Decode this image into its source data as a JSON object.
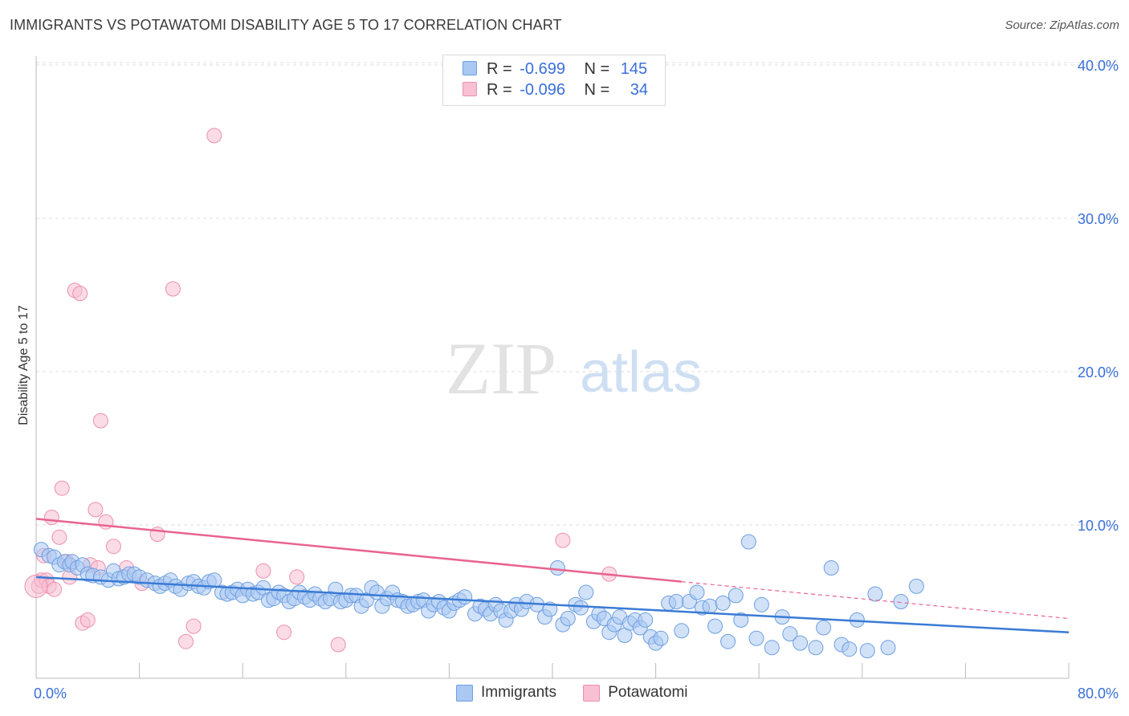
{
  "title": "IMMIGRANTS VS POTAWATOMI DISABILITY AGE 5 TO 17 CORRELATION CHART",
  "source": "Source: ZipAtlas.com",
  "watermark": {
    "zip": "ZIP",
    "atlas": "atlas"
  },
  "legend": {
    "rows": [
      {
        "r_label": "R =",
        "r_value": "-0.699",
        "n_label": "N =",
        "n_value": "145",
        "color": "#a9c8f2",
        "stroke": "#6f9fe0"
      },
      {
        "r_label": "R =",
        "r_value": "-0.096",
        "n_label": "N =",
        "n_value": "34",
        "color": "#f8c0d2",
        "stroke": "#ec8fb0"
      }
    ]
  },
  "bottom_legend": [
    {
      "label": "Immigrants",
      "color": "#a9c8f2",
      "stroke": "#6f9fe0"
    },
    {
      "label": "Potawatomi",
      "color": "#f8c0d2",
      "stroke": "#ec8fb0"
    }
  ],
  "chart_data": {
    "type": "scatter",
    "title": "IMMIGRANTS VS POTAWATOMI DISABILITY AGE 5 TO 17 CORRELATION CHART",
    "xlabel": "",
    "ylabel": "Disability Age 5 to 17",
    "xlim": [
      0,
      80
    ],
    "ylim": [
      0,
      42
    ],
    "x_tick_labels": [
      "0.0%",
      "80.0%"
    ],
    "y_ticks": [
      10,
      20,
      30,
      40
    ],
    "y_tick_labels": [
      "10.0%",
      "20.0%",
      "30.0%",
      "40.0%"
    ],
    "grid": true,
    "legend_position": "top-center",
    "colors": {
      "immigrants": "#3a7bd5",
      "potawatomi": "#e8648f",
      "tick_text": "#3a6fd8"
    },
    "series": [
      {
        "name": "Immigrants",
        "trend": {
          "x": [
            0,
            80
          ],
          "y": [
            6.6,
            3.0
          ],
          "dashed_after": null
        },
        "points": [
          [
            0.4,
            8.4
          ],
          [
            1.0,
            8.0
          ],
          [
            1.4,
            7.9
          ],
          [
            1.8,
            7.4
          ],
          [
            2.2,
            7.6
          ],
          [
            2.6,
            7.4
          ],
          [
            2.8,
            7.6
          ],
          [
            3.2,
            7.2
          ],
          [
            3.6,
            7.4
          ],
          [
            4.0,
            6.8
          ],
          [
            4.4,
            6.7
          ],
          [
            5.0,
            6.6
          ],
          [
            5.6,
            6.4
          ],
          [
            6.0,
            7.0
          ],
          [
            6.4,
            6.5
          ],
          [
            6.8,
            6.6
          ],
          [
            7.2,
            6.8
          ],
          [
            7.6,
            6.8
          ],
          [
            8.0,
            6.6
          ],
          [
            8.6,
            6.4
          ],
          [
            9.2,
            6.2
          ],
          [
            9.6,
            6.0
          ],
          [
            10.0,
            6.2
          ],
          [
            10.4,
            6.4
          ],
          [
            10.8,
            6.0
          ],
          [
            11.2,
            5.8
          ],
          [
            11.8,
            6.2
          ],
          [
            12.2,
            6.3
          ],
          [
            12.6,
            6.0
          ],
          [
            13.0,
            5.9
          ],
          [
            13.4,
            6.3
          ],
          [
            13.8,
            6.4
          ],
          [
            14.4,
            5.6
          ],
          [
            14.8,
            5.5
          ],
          [
            15.2,
            5.6
          ],
          [
            15.6,
            5.8
          ],
          [
            16.0,
            5.4
          ],
          [
            16.4,
            5.8
          ],
          [
            16.8,
            5.5
          ],
          [
            17.2,
            5.6
          ],
          [
            17.6,
            5.9
          ],
          [
            18.0,
            5.1
          ],
          [
            18.4,
            5.2
          ],
          [
            18.8,
            5.6
          ],
          [
            19.2,
            5.4
          ],
          [
            19.6,
            5.0
          ],
          [
            20.0,
            5.2
          ],
          [
            20.4,
            5.6
          ],
          [
            20.8,
            5.3
          ],
          [
            21.2,
            5.1
          ],
          [
            21.6,
            5.5
          ],
          [
            22.0,
            5.2
          ],
          [
            22.4,
            5.0
          ],
          [
            22.8,
            5.2
          ],
          [
            23.2,
            5.8
          ],
          [
            23.6,
            5.0
          ],
          [
            24.0,
            5.1
          ],
          [
            24.4,
            5.4
          ],
          [
            24.8,
            5.4
          ],
          [
            25.2,
            4.7
          ],
          [
            25.6,
            5.1
          ],
          [
            26.0,
            5.9
          ],
          [
            26.4,
            5.6
          ],
          [
            26.8,
            4.7
          ],
          [
            27.2,
            5.2
          ],
          [
            27.6,
            5.6
          ],
          [
            28.0,
            5.1
          ],
          [
            28.4,
            5.0
          ],
          [
            28.8,
            4.7
          ],
          [
            29.2,
            4.8
          ],
          [
            29.6,
            5.0
          ],
          [
            30.0,
            5.1
          ],
          [
            30.4,
            4.4
          ],
          [
            30.8,
            4.8
          ],
          [
            31.2,
            5.0
          ],
          [
            31.6,
            4.6
          ],
          [
            32.0,
            4.4
          ],
          [
            32.4,
            4.9
          ],
          [
            32.8,
            5.1
          ],
          [
            33.2,
            5.3
          ],
          [
            34.0,
            4.2
          ],
          [
            34.4,
            4.7
          ],
          [
            34.8,
            4.5
          ],
          [
            35.2,
            4.2
          ],
          [
            35.6,
            4.8
          ],
          [
            36.0,
            4.4
          ],
          [
            36.4,
            3.8
          ],
          [
            36.8,
            4.4
          ],
          [
            37.2,
            4.8
          ],
          [
            37.6,
            4.5
          ],
          [
            38.0,
            5.0
          ],
          [
            38.8,
            4.8
          ],
          [
            39.4,
            4.0
          ],
          [
            39.8,
            4.5
          ],
          [
            40.4,
            7.2
          ],
          [
            40.8,
            3.5
          ],
          [
            41.2,
            3.9
          ],
          [
            41.8,
            4.8
          ],
          [
            42.2,
            4.6
          ],
          [
            42.6,
            5.6
          ],
          [
            43.2,
            3.7
          ],
          [
            43.6,
            4.2
          ],
          [
            44.0,
            3.9
          ],
          [
            44.4,
            3.0
          ],
          [
            44.8,
            3.5
          ],
          [
            45.2,
            4.0
          ],
          [
            45.6,
            2.8
          ],
          [
            46.0,
            3.6
          ],
          [
            46.4,
            3.8
          ],
          [
            46.8,
            3.3
          ],
          [
            47.2,
            3.8
          ],
          [
            47.6,
            2.7
          ],
          [
            48.0,
            2.3
          ],
          [
            48.4,
            2.6
          ],
          [
            49.0,
            4.9
          ],
          [
            49.6,
            5.0
          ],
          [
            50.0,
            3.1
          ],
          [
            50.6,
            5.0
          ],
          [
            51.2,
            5.6
          ],
          [
            51.6,
            4.6
          ],
          [
            52.2,
            4.7
          ],
          [
            52.6,
            3.4
          ],
          [
            53.2,
            4.9
          ],
          [
            53.6,
            2.4
          ],
          [
            54.2,
            5.4
          ],
          [
            54.6,
            3.8
          ],
          [
            55.2,
            8.9
          ],
          [
            55.8,
            2.6
          ],
          [
            56.2,
            4.8
          ],
          [
            57.0,
            2.0
          ],
          [
            57.8,
            4.0
          ],
          [
            58.4,
            2.9
          ],
          [
            59.2,
            2.3
          ],
          [
            60.4,
            2.0
          ],
          [
            61.0,
            3.3
          ],
          [
            61.6,
            7.2
          ],
          [
            62.4,
            2.2
          ],
          [
            63.0,
            1.9
          ],
          [
            63.6,
            3.8
          ],
          [
            64.4,
            1.8
          ],
          [
            65.0,
            5.5
          ],
          [
            66.0,
            2.0
          ],
          [
            67.0,
            5.0
          ],
          [
            68.2,
            6.0
          ]
        ]
      },
      {
        "name": "Potawatomi",
        "trend": {
          "x": [
            0,
            50,
            80
          ],
          "y": [
            10.4,
            6.3,
            3.9
          ],
          "dashed_after": 50
        },
        "points": [
          [
            0.2,
            6.0
          ],
          [
            0.4,
            6.4
          ],
          [
            0.6,
            8.0
          ],
          [
            0.8,
            6.4
          ],
          [
            1.0,
            6.0
          ],
          [
            1.2,
            10.5
          ],
          [
            1.4,
            5.8
          ],
          [
            1.8,
            9.2
          ],
          [
            2.0,
            12.4
          ],
          [
            2.4,
            7.6
          ],
          [
            2.6,
            6.6
          ],
          [
            3.0,
            25.3
          ],
          [
            3.4,
            25.1
          ],
          [
            3.6,
            3.6
          ],
          [
            4.0,
            3.8
          ],
          [
            4.2,
            7.4
          ],
          [
            4.6,
            11.0
          ],
          [
            4.8,
            7.2
          ],
          [
            5.0,
            16.8
          ],
          [
            5.4,
            10.2
          ],
          [
            6.0,
            8.6
          ],
          [
            7.0,
            7.2
          ],
          [
            8.2,
            6.2
          ],
          [
            9.4,
            9.4
          ],
          [
            10.6,
            25.4
          ],
          [
            11.6,
            2.4
          ],
          [
            12.2,
            3.4
          ],
          [
            13.8,
            35.4
          ],
          [
            17.6,
            7.0
          ],
          [
            19.2,
            3.0
          ],
          [
            20.2,
            6.6
          ],
          [
            23.4,
            2.2
          ],
          [
            40.8,
            9.0
          ],
          [
            44.4,
            6.8
          ]
        ]
      }
    ]
  }
}
